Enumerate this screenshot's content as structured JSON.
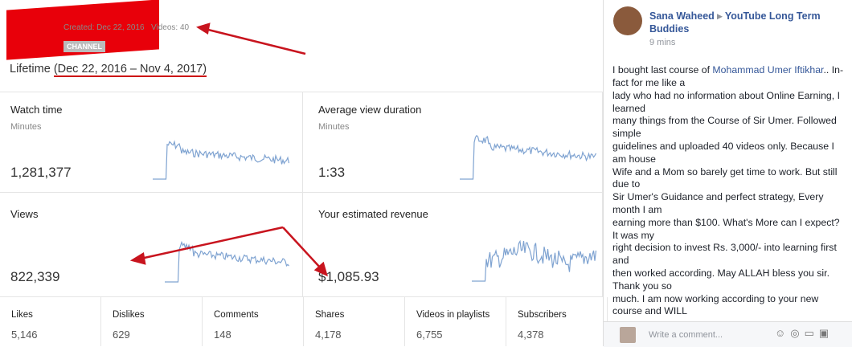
{
  "header": {
    "created": "Created: Dec 22, 2016",
    "videos": "Videos: 40",
    "badge": "CHANNEL"
  },
  "lifetime": {
    "label": "Lifetime",
    "range": "(Dec 22, 2016 – Nov 4, 2017)"
  },
  "cards": [
    {
      "title": "Watch time",
      "unit": "Minutes",
      "value": "1,281,377"
    },
    {
      "title": "Average view duration",
      "unit": "Minutes",
      "value": "1:33"
    },
    {
      "title": "Views",
      "value": "822,339"
    },
    {
      "title": "Your estimated revenue",
      "value": "$1,085.93"
    }
  ],
  "stats": [
    {
      "label": "Likes",
      "value": "5,146"
    },
    {
      "label": "Dislikes",
      "value": "629"
    },
    {
      "label": "Comments",
      "value": "148"
    },
    {
      "label": "Shares",
      "value": "4,178"
    },
    {
      "label": "Videos in playlists",
      "value": "6,755"
    },
    {
      "label": "Subscribers",
      "value": "4,378"
    }
  ],
  "post": {
    "author": "Sana Waheed",
    "group": "YouTube Long Term Buddies",
    "time": "9 mins",
    "first_line": {
      "before": "I bought last course of ",
      "mention": "Mohammad Umer Iftikhar",
      "after": ".. In-"
    },
    "lines": [
      "fact for me like a",
      "lady who had no information about Online Earning, I",
      "learned",
      "many things from the Course of Sir Umer. Followed",
      "simple",
      "guidelines and uploaded 40 videos only. Because I",
      "am house",
      "Wife and a Mom so barely get time to work. But still",
      "due to",
      "Sir Umer's Guidance and perfect strategy, Every",
      "month I am",
      "earning more than $100. What's More can I expect?",
      "It was my",
      "right decision to invest Rs. 3,000/- into learning first",
      "and",
      "then worked according. May ALLAH bless you sir.",
      "Thank you so",
      "much. I am now working according to your new",
      "course and WILL"
    ],
    "comment_placeholder": "Write a comment..."
  }
}
